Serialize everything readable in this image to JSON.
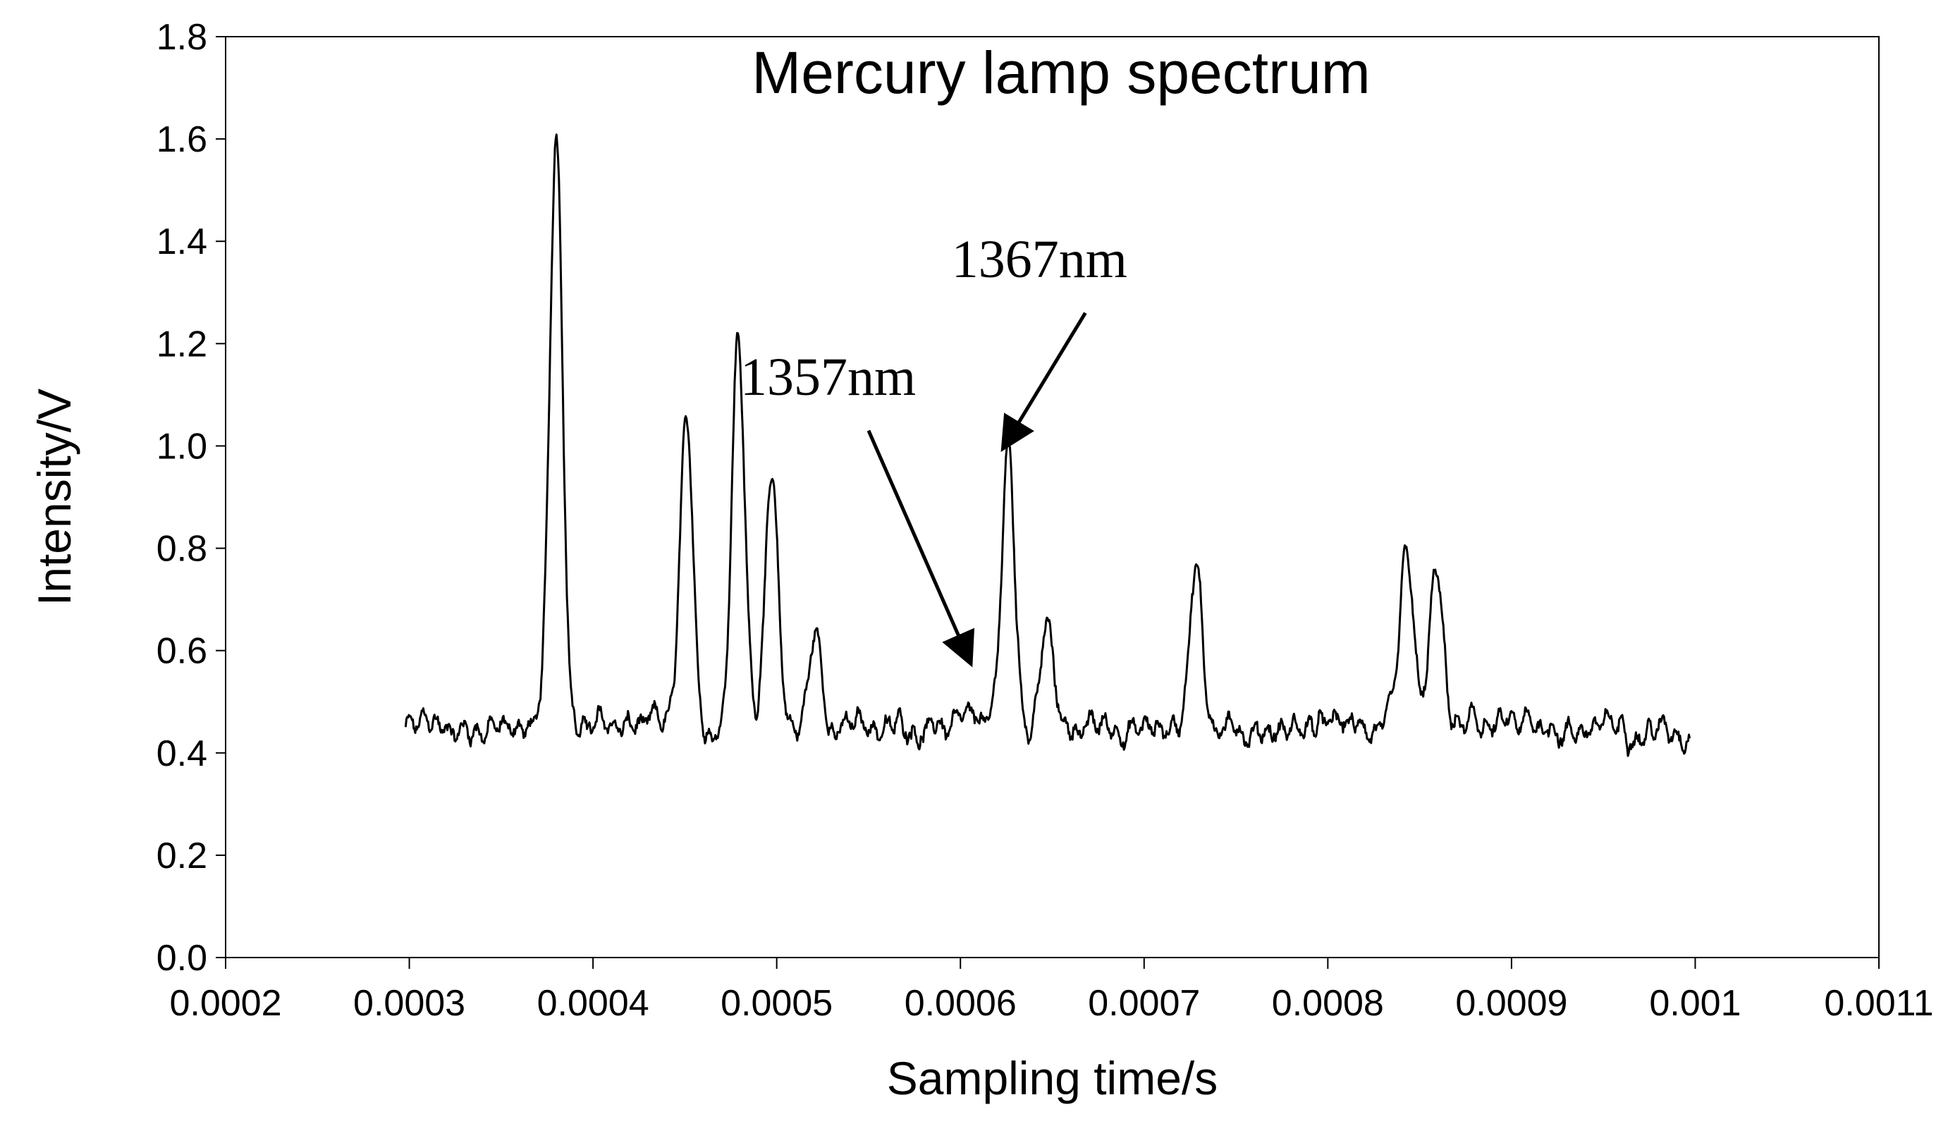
{
  "chart_data": {
    "type": "line",
    "title": "Mercury lamp spectrum",
    "xlabel": "Sampling time/s",
    "ylabel": "Intensity/V",
    "xlim": [
      0.0002,
      0.0011
    ],
    "ylim": [
      0.0,
      1.8
    ],
    "x_ticks": [
      "0.0002",
      "0.0003",
      "0.0004",
      "0.0005",
      "0.0006",
      "0.0007",
      "0.0008",
      "0.0009",
      "0.001",
      "0.0011"
    ],
    "x_tick_values": [
      0.0002,
      0.0003,
      0.0004,
      0.0005,
      0.0006,
      0.0007,
      0.0008,
      0.0009,
      0.001,
      0.0011
    ],
    "y_ticks": [
      "0.0",
      "0.2",
      "0.4",
      "0.6",
      "0.8",
      "1.0",
      "1.2",
      "1.4",
      "1.6",
      "1.8"
    ],
    "y_tick_values": [
      0.0,
      0.2,
      0.4,
      0.6,
      0.8,
      1.0,
      1.2,
      1.4,
      1.6,
      1.8
    ],
    "grid": false,
    "legend": "none",
    "series": [
      {
        "name": "Mercury lamp spectrum",
        "x_start": 0.000298,
        "x_end": 0.000997,
        "baseline": 0.45,
        "peaks": [
          {
            "x": 0.00038,
            "height": 1.61
          },
          {
            "x": 0.000451,
            "height": 1.03
          },
          {
            "x": 0.000479,
            "height": 1.22
          },
          {
            "x": 0.000497,
            "height": 0.94
          },
          {
            "x": 0.000521,
            "height": 0.63
          },
          {
            "x": 0.000626,
            "height": 0.99
          },
          {
            "x": 0.000647,
            "height": 0.65
          },
          {
            "x": 0.000728,
            "height": 0.78
          },
          {
            "x": 0.000843,
            "height": 0.77
          },
          {
            "x": 0.000859,
            "height": 0.75
          }
        ]
      }
    ],
    "annotations": [
      {
        "text": "1357nm",
        "x_text": 0.000528,
        "y_text": 1.1,
        "arrow_from": [
          0.00055,
          1.03
        ],
        "arrow_to": [
          0.000605,
          0.58
        ]
      },
      {
        "text": "1367nm",
        "x_text": 0.000643,
        "y_text": 1.33,
        "arrow_from": [
          0.000668,
          1.26
        ],
        "arrow_to": [
          0.000624,
          1.0
        ]
      }
    ]
  }
}
